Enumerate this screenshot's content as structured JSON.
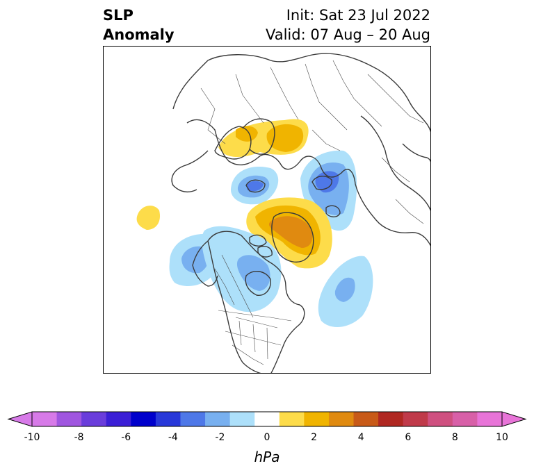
{
  "title": {
    "left_line1": "SLP",
    "left_line2": "Anomaly",
    "right_line1": "Init: Sat 23 Jul 2022",
    "right_line2": "Valid: 07 Aug – 20 Aug"
  },
  "map": {
    "projection": "north-polar-stereographic",
    "features": [
      "coastlines",
      "country-borders",
      "us-state-borders",
      "canada-province-borders"
    ],
    "anomaly_centers": [
      {
        "region": "Northern Europe / Scandinavia",
        "sign": "positive",
        "approx_hpa": 3
      },
      {
        "region": "Barents Sea",
        "sign": "negative",
        "approx_hpa": -5
      },
      {
        "region": "Siberian Arctic / Laptev Sea",
        "sign": "negative",
        "approx_hpa": -4
      },
      {
        "region": "Greenland",
        "sign": "positive",
        "approx_hpa": 4
      },
      {
        "region": "Gulf of Alaska",
        "sign": "negative",
        "approx_hpa": -3
      },
      {
        "region": "Hudson Bay / central Canada",
        "sign": "negative",
        "approx_hpa": -2
      },
      {
        "region": "North Atlantic",
        "sign": "negative",
        "approx_hpa": -3
      },
      {
        "region": "North Pacific",
        "sign": "positive",
        "approx_hpa": 1
      }
    ]
  },
  "colorbar": {
    "unit": "hPa",
    "ticks": [
      "-10",
      "-8",
      "-6",
      "-4",
      "-2",
      "0",
      "2",
      "4",
      "6",
      "8",
      "10"
    ],
    "extend": "both",
    "colors": [
      "#d77ae8",
      "#a056e0",
      "#6a3ddb",
      "#3b1fd6",
      "#0000cc",
      "#2838d9",
      "#4e78e8",
      "#78b0f0",
      "#ade0fa",
      "#ffffff",
      "#fddc4a",
      "#f0b400",
      "#e08a10",
      "#c85a18",
      "#b02822",
      "#c03a4a",
      "#cf5080",
      "#d860a8",
      "#e874d8"
    ],
    "under_color": "#d77ae8",
    "over_color": "#e874d8"
  }
}
